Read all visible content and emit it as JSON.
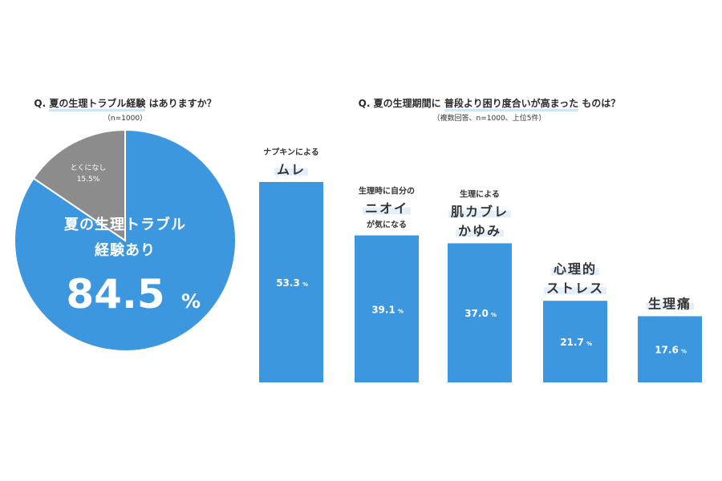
{
  "pie_title": {
    "prefix": "Q.",
    "highlight": "夏の生理トラブル経験",
    "suffix": "はありますか？"
  },
  "pie_sub": "（n=1000）",
  "bar_title": {
    "prefix": "Q. 夏の生理期間に",
    "highlight": "普段より困り度合いが高まった",
    "suffix": "ものは？"
  },
  "bar_sub": "（複数回答、n=1000、上位5件）",
  "colors": {
    "primary": "#3d97de",
    "gray": "#8c8c8c",
    "highlight": "#e3f0fb"
  },
  "chart_data": [
    {
      "type": "pie",
      "slices": [
        {
          "label_lines": [
            "夏の生理トラブル",
            "経験あり"
          ],
          "value": 84.5,
          "display_value": "84.5",
          "unit": "%",
          "color": "#3d97de"
        },
        {
          "label_lines": [
            "とくになし"
          ],
          "value": 15.5,
          "display_value": "15.5%",
          "color": "#8c8c8c"
        }
      ]
    },
    {
      "type": "bar",
      "categories": [
        {
          "small_top": "ナプキンによる",
          "big": [
            "ムレ"
          ],
          "small_bottom": ""
        },
        {
          "small_top": "生理時に自分の",
          "big": [
            "ニオイ"
          ],
          "small_bottom": "が気になる"
        },
        {
          "small_top": "生理による",
          "big": [
            "肌カブレ",
            "かゆみ"
          ],
          "small_bottom": ""
        },
        {
          "small_top": "",
          "big": [
            "心理的",
            "ストレス"
          ],
          "small_bottom": ""
        },
        {
          "small_top": "",
          "big": [
            "生理痛"
          ],
          "small_bottom": ""
        }
      ],
      "values": [
        53.3,
        39.1,
        37.0,
        21.7,
        17.6
      ],
      "value_labels": [
        "53.3",
        "39.1",
        "37.0",
        "21.7",
        "17.6"
      ],
      "unit": "%",
      "ylim": [
        0,
        60
      ]
    }
  ]
}
